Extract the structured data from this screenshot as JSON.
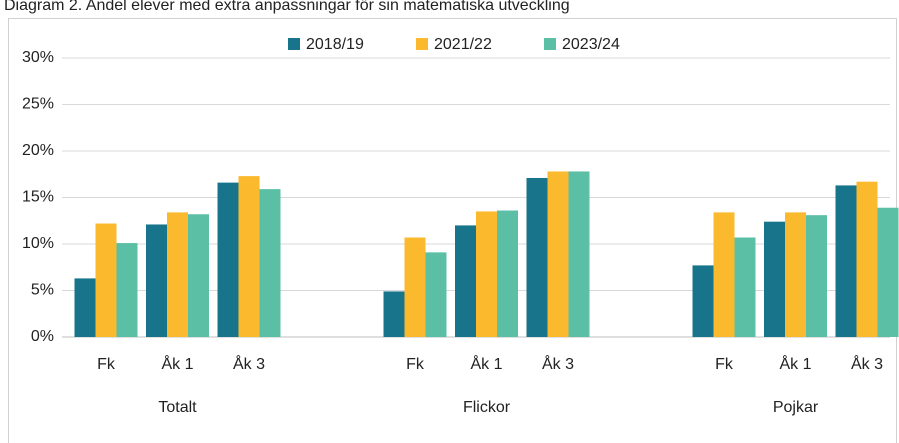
{
  "chart_data": {
    "type": "bar",
    "title": "Diagram 2. Andel elever med extra anpassningar för sin matematiska utveckling",
    "groups": [
      "Totalt",
      "Flickor",
      "Pojkar"
    ],
    "categories": [
      "Fk",
      "Åk 1",
      "Åk 3",
      "Fk",
      "Åk 1",
      "Åk 3",
      "Fk",
      "Åk 1",
      "Åk 3"
    ],
    "series": [
      {
        "name": "2018/19",
        "color": "#17748a",
        "values": [
          6.3,
          12.1,
          16.6,
          4.9,
          12.0,
          17.1,
          7.7,
          12.4,
          16.3
        ]
      },
      {
        "name": "2021/22",
        "color": "#fbb92d",
        "values": [
          12.2,
          13.4,
          17.3,
          10.7,
          13.5,
          17.8,
          13.4,
          13.4,
          16.7
        ]
      },
      {
        "name": "2023/24",
        "color": "#5bbfa6",
        "values": [
          10.1,
          13.2,
          15.9,
          9.1,
          13.6,
          17.8,
          10.7,
          13.1,
          13.9
        ]
      }
    ],
    "ylim": [
      0,
      30
    ],
    "yticks": [
      {
        "value": 0,
        "label": "0%"
      },
      {
        "value": 5,
        "label": "5%"
      },
      {
        "value": 10,
        "label": "10%"
      },
      {
        "value": 15,
        "label": "15%"
      },
      {
        "value": 20,
        "label": "20%"
      },
      {
        "value": 25,
        "label": "25%"
      },
      {
        "value": 30,
        "label": "30%"
      }
    ],
    "grid": true,
    "legend": "top"
  }
}
